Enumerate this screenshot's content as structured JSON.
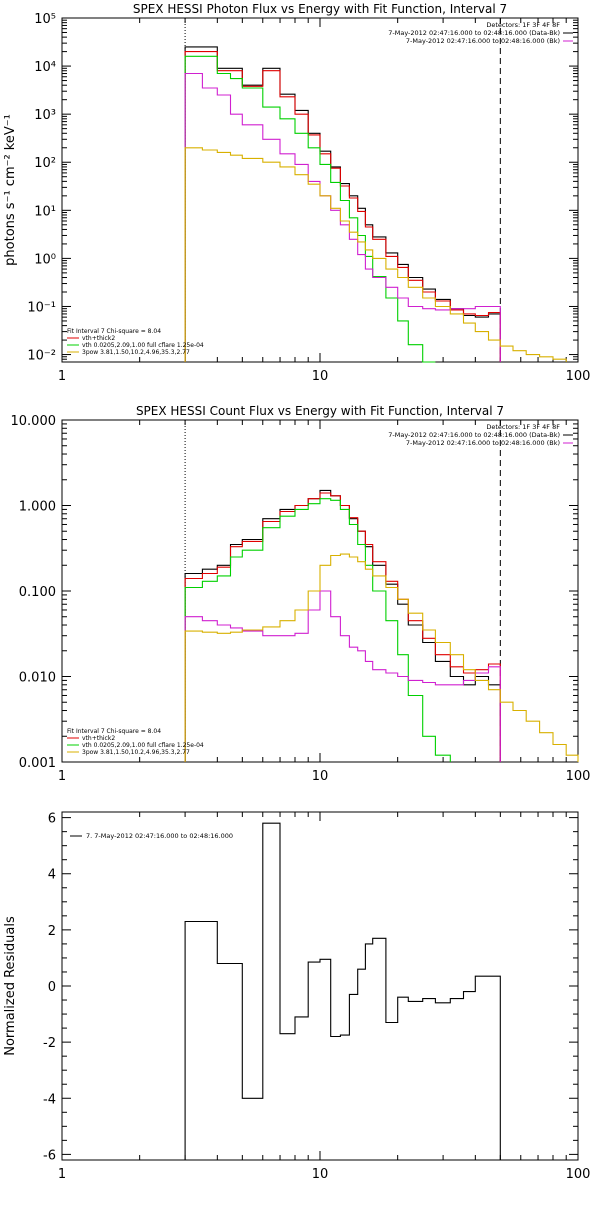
{
  "chart_data": [
    {
      "type": "line",
      "title": "SPEX HESSI Photon Flux vs Energy with Fit Function, Interval 7",
      "ylabel": "photons s⁻¹ cm⁻² keV⁻¹",
      "xlabel": "",
      "xscale": "log",
      "yscale": "log",
      "xlim": [
        1,
        100
      ],
      "ylim": [
        0.007,
        100000
      ],
      "xticks": [
        {
          "v": 1,
          "label": "1"
        },
        {
          "v": 10,
          "label": "10"
        },
        {
          "v": 100,
          "label": "100"
        }
      ],
      "yticks": [
        {
          "v": 0.01,
          "label": "10⁻²"
        },
        {
          "v": 0.1,
          "label": "10⁻¹"
        },
        {
          "v": 1,
          "label": "10⁰"
        },
        {
          "v": 10,
          "label": "10¹"
        },
        {
          "v": 100,
          "label": "10²"
        },
        {
          "v": 1000,
          "label": "10³"
        },
        {
          "v": 10000,
          "label": "10⁴"
        },
        {
          "v": 100000,
          "label": "10⁵"
        }
      ],
      "vlines": [
        {
          "x": 3.0,
          "style": "dotted"
        },
        {
          "x": 50.0,
          "style": "dashed"
        }
      ],
      "legend_topright": [
        "Detectors: 1F 3F 4F 8F",
        "7-May-2012 02:47:16.000 to 02:48:16.000 (Data-Bk)",
        "7-May-2012 02:47:16.000 to 02:48:16.000 (Bk)"
      ],
      "legend_topright_colors": [
        "",
        "#000000",
        "#d020d0"
      ],
      "legend_bottomleft": [
        "Fit Interval 7   Chi-square = 8.04",
        "vth+thick2",
        "vth 0.0205,2.09,1.00  full cflare 1.25e-04",
        "3pow 3.81,1.50,10.2,4.96,35.3,2.77"
      ],
      "legend_bottomleft_colors": [
        "",
        "#e00000",
        "#00d000",
        "#d8b000"
      ],
      "edges": [
        3,
        3.5,
        4,
        4.5,
        5,
        6,
        7,
        8,
        9,
        10,
        11,
        12,
        13,
        14,
        15,
        16,
        18,
        20,
        22,
        25,
        28,
        32,
        36,
        40,
        45,
        50,
        56,
        63,
        71,
        80,
        90
      ],
      "series": [
        {
          "color": "#000000",
          "from": 0,
          "values": [
            25000,
            25000,
            9000,
            9000,
            4000,
            9000,
            2600,
            1200,
            400,
            170,
            80,
            36,
            20,
            11,
            5,
            2.8,
            1.3,
            0.75,
            0.4,
            0.23,
            0.14,
            0.09,
            0.065,
            0.06,
            0.07
          ]
        },
        {
          "color": "#e00000",
          "from": 0,
          "values": [
            20000,
            20000,
            8000,
            8000,
            3800,
            8000,
            2300,
            1000,
            370,
            150,
            75,
            32,
            18,
            9.5,
            4.5,
            2.5,
            1.1,
            0.65,
            0.35,
            0.2,
            0.13,
            0.085,
            0.07,
            0.065,
            0.075
          ]
        },
        {
          "color": "#00d000",
          "from": 0,
          "values": [
            16000,
            16000,
            7000,
            5500,
            3500,
            1400,
            800,
            400,
            200,
            90,
            38,
            16,
            7,
            3,
            1.1,
            0.42,
            0.15,
            0.05,
            0.016,
            0.005
          ]
        },
        {
          "color": "#d020d0",
          "from": 0,
          "values": [
            7000,
            3500,
            2500,
            1000,
            600,
            300,
            150,
            90,
            40,
            20,
            10,
            5,
            2.5,
            1.2,
            0.6,
            0.4,
            0.25,
            0.15,
            0.1,
            0.09,
            0.085,
            0.09,
            0.09,
            0.1,
            0.1
          ]
        },
        {
          "color": "#d8b000",
          "from": 0,
          "values": [
            200,
            180,
            160,
            140,
            120,
            100,
            80,
            55,
            35,
            20,
            11,
            6,
            3.5,
            2.2,
            1.5,
            1,
            0.6,
            0.4,
            0.25,
            0.15,
            0.1,
            0.07,
            0.045,
            0.03,
            0.02,
            0.015,
            0.012,
            0.01,
            0.009,
            0.008
          ]
        }
      ]
    },
    {
      "type": "line",
      "title": "SPEX HESSI Count Flux vs Energy with Fit Function, Interval 7",
      "xlabel": "",
      "ylabel": "",
      "xscale": "log",
      "yscale": "log",
      "xlim": [
        1,
        100
      ],
      "ylim": [
        0.001,
        10
      ],
      "xticks": [
        {
          "v": 1,
          "label": "1"
        },
        {
          "v": 10,
          "label": "10"
        },
        {
          "v": 100,
          "label": "100"
        }
      ],
      "yticks": [
        {
          "v": 0.001,
          "label": "0.001"
        },
        {
          "v": 0.01,
          "label": "0.010"
        },
        {
          "v": 0.1,
          "label": "0.100"
        },
        {
          "v": 1,
          "label": "1.000"
        },
        {
          "v": 10,
          "label": "10.000"
        }
      ],
      "vlines": [
        {
          "x": 3.0,
          "style": "dotted"
        },
        {
          "x": 50.0,
          "style": "dashed"
        }
      ],
      "legend_topright": [
        "Detectors: 1F 3F 4F 8F",
        "7-May-2012 02:47:16.000 to 02:48:16.000 (Data-Bk)",
        "7-May-2012 02:47:16.000 to 02:48:16.000 (Bk)"
      ],
      "legend_topright_colors": [
        "",
        "#000000",
        "#d020d0"
      ],
      "legend_bottomleft": [
        "Fit Interval 7   Chi-square = 8.04",
        "vth+thick2",
        "vth 0.0205,2.09,1.00  full cflare 1.25e-04",
        "3pow 3.81,1.50,10.2,4.96,35.3,2.77"
      ],
      "legend_bottomleft_colors": [
        "",
        "#e00000",
        "#00d000",
        "#d8b000"
      ],
      "edges": [
        3,
        3.5,
        4,
        4.5,
        5,
        6,
        7,
        8,
        9,
        10,
        11,
        12,
        13,
        14,
        15,
        16,
        18,
        20,
        22,
        25,
        28,
        32,
        36,
        40,
        45,
        50,
        56,
        63,
        71,
        80,
        90,
        100
      ],
      "series": [
        {
          "color": "#000000",
          "from": 0,
          "values": [
            0.16,
            0.18,
            0.2,
            0.35,
            0.4,
            0.7,
            0.9,
            1.0,
            1.2,
            1.5,
            1.3,
            1.0,
            0.7,
            0.5,
            0.33,
            0.2,
            0.12,
            0.07,
            0.04,
            0.025,
            0.015,
            0.01,
            0.008,
            0.01,
            0.008
          ]
        },
        {
          "color": "#e00000",
          "from": 0,
          "values": [
            0.14,
            0.16,
            0.19,
            0.33,
            0.38,
            0.65,
            0.85,
            1.0,
            1.2,
            1.4,
            1.3,
            1.0,
            0.72,
            0.5,
            0.35,
            0.22,
            0.13,
            0.08,
            0.045,
            0.028,
            0.018,
            0.013,
            0.011,
            0.012,
            0.014
          ]
        },
        {
          "color": "#00d000",
          "from": 0,
          "values": [
            0.11,
            0.13,
            0.15,
            0.25,
            0.3,
            0.55,
            0.75,
            0.9,
            1.05,
            1.2,
            1.15,
            0.9,
            0.6,
            0.35,
            0.2,
            0.1,
            0.045,
            0.018,
            0.006,
            0.002,
            0.0012
          ]
        },
        {
          "color": "#d020d0",
          "from": 0,
          "values": [
            0.05,
            0.045,
            0.04,
            0.037,
            0.034,
            0.03,
            0.03,
            0.032,
            0.06,
            0.1,
            0.05,
            0.03,
            0.022,
            0.02,
            0.015,
            0.012,
            0.011,
            0.01,
            0.009,
            0.0085,
            0.008,
            0.008,
            0.009,
            0.011,
            0.013
          ]
        },
        {
          "color": "#d8b000",
          "from": 0,
          "values": [
            0.034,
            0.033,
            0.032,
            0.033,
            0.035,
            0.038,
            0.045,
            0.06,
            0.1,
            0.2,
            0.26,
            0.27,
            0.25,
            0.22,
            0.18,
            0.15,
            0.11,
            0.08,
            0.055,
            0.035,
            0.025,
            0.018,
            0.012,
            0.009,
            0.007,
            0.005,
            0.004,
            0.003,
            0.0022,
            0.0016,
            0.0012
          ]
        }
      ]
    },
    {
      "type": "line",
      "title": "",
      "xlabel": "",
      "ylabel": "Normalized Residuals",
      "xscale": "log",
      "yscale": "linear",
      "xlim": [
        1,
        100
      ],
      "ylim": [
        -6.2,
        6.2
      ],
      "xticks": [
        {
          "v": 1,
          "label": "1"
        },
        {
          "v": 10,
          "label": "10"
        },
        {
          "v": 100,
          "label": "100"
        }
      ],
      "yticks": [
        {
          "v": -6,
          "label": "-6"
        },
        {
          "v": -4,
          "label": "-4"
        },
        {
          "v": -2,
          "label": "-2"
        },
        {
          "v": 0,
          "label": "0"
        },
        {
          "v": 2,
          "label": "2"
        },
        {
          "v": 4,
          "label": "4"
        },
        {
          "v": 6,
          "label": "6"
        }
      ],
      "legend_topleft": [
        "7.  7-May-2012 02:47:16.000 to 02:48:16.000"
      ],
      "edges": [
        3,
        4,
        5,
        6,
        7,
        8,
        9,
        10,
        11,
        12,
        13,
        14,
        15,
        16,
        18,
        20,
        22,
        25,
        28,
        32,
        36,
        40,
        45,
        50
      ],
      "series": [
        {
          "color": "#000000",
          "from": 0,
          "values": [
            2.3,
            0.8,
            -4.0,
            5.8,
            -1.7,
            -1.1,
            0.85,
            0.95,
            -1.8,
            -1.75,
            -0.3,
            0.6,
            1.5,
            1.7,
            -1.3,
            -0.4,
            -0.55,
            -0.45,
            -0.6,
            -0.45,
            -0.2,
            0.35,
            0.35
          ]
        }
      ]
    }
  ]
}
